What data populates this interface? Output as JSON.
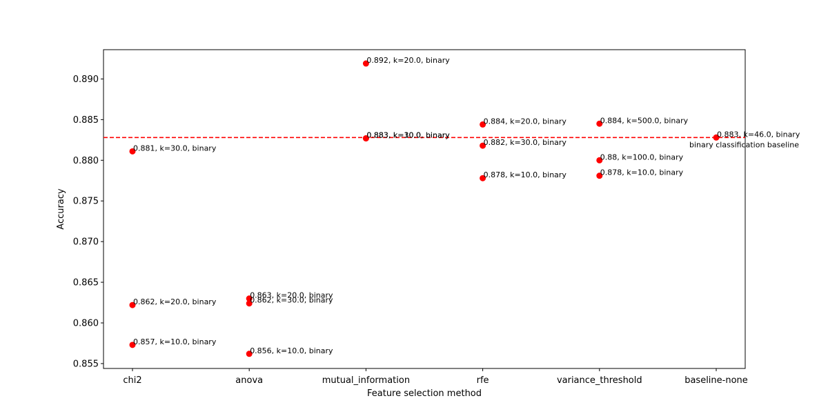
{
  "chart_data": {
    "type": "scatter",
    "title": "",
    "xlabel": "Feature selection method",
    "ylabel": "Accuracy",
    "categories": [
      "chi2",
      "anova",
      "mutual_information",
      "rfe",
      "variance_threshold",
      "baseline-none"
    ],
    "ylim": [
      0.8544,
      0.8936
    ],
    "yticks": [
      0.855,
      0.86,
      0.865,
      0.87,
      0.875,
      0.88,
      0.885,
      0.89
    ],
    "ytick_labels": [
      "0.855",
      "0.860",
      "0.865",
      "0.870",
      "0.875",
      "0.880",
      "0.885",
      "0.890"
    ],
    "grid": false,
    "marker_color": "#ff0000",
    "points": [
      {
        "category": "chi2",
        "y": 0.8811,
        "label": "0.881, k=30.0, binary"
      },
      {
        "category": "chi2",
        "y": 0.8622,
        "label": "0.862, k=20.0, binary"
      },
      {
        "category": "chi2",
        "y": 0.8573,
        "label": "0.857, k=10.0, binary"
      },
      {
        "category": "anova",
        "y": 0.863,
        "label": "0.863, k=20.0, binary"
      },
      {
        "category": "anova",
        "y": 0.8624,
        "label": "0.862, k=30.0, binary"
      },
      {
        "category": "anova",
        "y": 0.8562,
        "label": "0.856, k=10.0, binary"
      },
      {
        "category": "mutual_information",
        "y": 0.8919,
        "label": "0.892, k=20.0, binary"
      },
      {
        "category": "mutual_information",
        "y": 0.8827,
        "label": "0.883, k=30.0, binary"
      },
      {
        "category": "mutual_information",
        "y": 0.8827,
        "label": "0.883, k=10.0, binary"
      },
      {
        "category": "rfe",
        "y": 0.8844,
        "label": "0.884, k=20.0, binary"
      },
      {
        "category": "rfe",
        "y": 0.8818,
        "label": "0.882, k=30.0, binary"
      },
      {
        "category": "rfe",
        "y": 0.8778,
        "label": "0.878, k=10.0, binary"
      },
      {
        "category": "variance_threshold",
        "y": 0.8845,
        "label": "0.884, k=500.0, binary"
      },
      {
        "category": "variance_threshold",
        "y": 0.88,
        "label": "0.88, k=100.0, binary"
      },
      {
        "category": "variance_threshold",
        "y": 0.8781,
        "label": "0.878, k=10.0, binary"
      },
      {
        "category": "baseline-none",
        "y": 0.8828,
        "label": "0.883, k=46.0, binary"
      }
    ],
    "baseline": {
      "y": 0.8828,
      "label": "binary classification baseline",
      "color": "#ff0000",
      "style": "dashed"
    }
  }
}
